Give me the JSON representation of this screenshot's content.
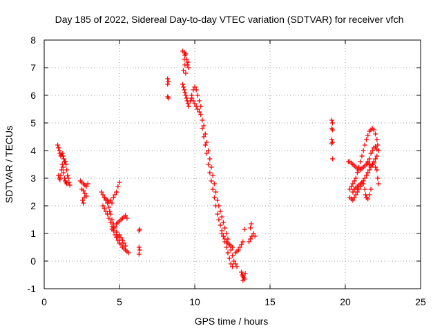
{
  "chart_data": {
    "type": "scatter",
    "title": "Day 185 of 2022, Sidereal Day-to-day VTEC variation (SDTVAR) for receiver vfch",
    "xlabel": "GPS time / hours",
    "ylabel": "SDTVAR / TECUs",
    "xlim": [
      0,
      25
    ],
    "ylim": [
      -1,
      8
    ],
    "xticks": [
      0,
      5,
      10,
      15,
      20,
      25
    ],
    "yticks": [
      -1,
      0,
      1,
      2,
      3,
      4,
      5,
      6,
      7,
      8
    ],
    "grid": true,
    "marker": "+",
    "color": "#ff0000",
    "series": [
      {
        "name": "SDTVAR",
        "points": [
          [
            0.9,
            4.2
          ],
          [
            0.95,
            4.1
          ],
          [
            1.0,
            4.0
          ],
          [
            1.05,
            3.9
          ],
          [
            1.1,
            3.8
          ],
          [
            1.15,
            3.85
          ],
          [
            1.2,
            3.9
          ],
          [
            1.25,
            3.8
          ],
          [
            1.3,
            3.7
          ],
          [
            1.35,
            3.6
          ],
          [
            1.4,
            3.6
          ],
          [
            1.45,
            3.5
          ],
          [
            1.5,
            3.3
          ],
          [
            1.55,
            3.1
          ],
          [
            1.6,
            3.0
          ],
          [
            1.65,
            2.85
          ],
          [
            1.7,
            2.75
          ],
          [
            0.95,
            3.1
          ],
          [
            1.0,
            3.0
          ],
          [
            1.05,
            2.95
          ],
          [
            1.1,
            3.1
          ],
          [
            1.15,
            3.3
          ],
          [
            1.2,
            3.5
          ],
          [
            1.25,
            3.4
          ],
          [
            1.3,
            3.2
          ],
          [
            1.35,
            3.0
          ],
          [
            1.4,
            2.9
          ],
          [
            1.45,
            2.85
          ],
          [
            1.5,
            2.8
          ],
          [
            2.4,
            2.9
          ],
          [
            2.5,
            2.85
          ],
          [
            2.6,
            2.8
          ],
          [
            2.7,
            2.75
          ],
          [
            2.8,
            2.7
          ],
          [
            2.9,
            2.8
          ],
          [
            2.5,
            2.6
          ],
          [
            2.6,
            2.55
          ],
          [
            2.7,
            2.45
          ],
          [
            2.8,
            2.35
          ],
          [
            2.55,
            2.2
          ],
          [
            2.6,
            2.1
          ],
          [
            2.65,
            2.3
          ],
          [
            3.8,
            2.5
          ],
          [
            3.9,
            2.4
          ],
          [
            4.0,
            2.3
          ],
          [
            4.1,
            2.2
          ],
          [
            4.2,
            2.1
          ],
          [
            4.3,
            1.95
          ],
          [
            4.35,
            1.8
          ],
          [
            4.4,
            1.7
          ],
          [
            4.5,
            1.5
          ],
          [
            4.6,
            1.35
          ],
          [
            4.7,
            1.2
          ],
          [
            4.8,
            1.05
          ],
          [
            4.9,
            0.9
          ],
          [
            5.0,
            0.75
          ],
          [
            5.1,
            0.6
          ],
          [
            5.2,
            0.5
          ],
          [
            5.3,
            0.45
          ],
          [
            5.4,
            0.4
          ],
          [
            5.5,
            0.35
          ],
          [
            5.6,
            0.3
          ],
          [
            3.9,
            2.0
          ],
          [
            4.0,
            1.9
          ],
          [
            4.1,
            1.8
          ],
          [
            4.2,
            1.7
          ],
          [
            4.3,
            1.55
          ],
          [
            4.4,
            1.4
          ],
          [
            4.5,
            1.25
          ],
          [
            4.6,
            1.1
          ],
          [
            4.7,
            0.95
          ],
          [
            4.8,
            0.85
          ],
          [
            4.9,
            0.75
          ],
          [
            5.0,
            0.65
          ],
          [
            4.0,
            2.3
          ],
          [
            4.1,
            2.25
          ],
          [
            4.2,
            2.2
          ],
          [
            4.3,
            2.15
          ],
          [
            4.4,
            2.2
          ],
          [
            4.5,
            2.1
          ],
          [
            4.6,
            2.3
          ],
          [
            4.7,
            2.4
          ],
          [
            4.8,
            2.5
          ],
          [
            4.9,
            2.7
          ],
          [
            5.0,
            2.85
          ],
          [
            4.5,
            1.15
          ],
          [
            4.6,
            1.2
          ],
          [
            4.7,
            1.25
          ],
          [
            4.8,
            1.35
          ],
          [
            4.9,
            1.4
          ],
          [
            5.0,
            1.45
          ],
          [
            5.1,
            1.5
          ],
          [
            5.2,
            1.55
          ],
          [
            5.3,
            1.6
          ],
          [
            5.4,
            1.65
          ],
          [
            5.5,
            1.55
          ],
          [
            5.0,
            0.95
          ],
          [
            5.1,
            0.85
          ],
          [
            5.2,
            0.75
          ],
          [
            5.3,
            0.65
          ],
          [
            5.4,
            0.55
          ],
          [
            6.3,
            1.1
          ],
          [
            6.35,
            1.15
          ],
          [
            6.3,
            0.5
          ],
          [
            6.35,
            0.4
          ],
          [
            6.3,
            0.25
          ],
          [
            8.2,
            6.6
          ],
          [
            8.25,
            6.5
          ],
          [
            8.2,
            6.4
          ],
          [
            8.2,
            5.95
          ],
          [
            8.25,
            5.9
          ],
          [
            9.2,
            7.6
          ],
          [
            9.3,
            7.55
          ],
          [
            9.35,
            7.45
          ],
          [
            9.4,
            7.5
          ],
          [
            9.45,
            7.3
          ],
          [
            9.5,
            7.1
          ],
          [
            9.55,
            7.2
          ],
          [
            9.6,
            7.0
          ],
          [
            9.3,
            7.3
          ],
          [
            9.35,
            7.1
          ],
          [
            9.25,
            6.9
          ],
          [
            9.4,
            6.8
          ],
          [
            9.2,
            6.4
          ],
          [
            9.25,
            6.3
          ],
          [
            9.3,
            6.2
          ],
          [
            9.35,
            6.1
          ],
          [
            9.4,
            6.0
          ],
          [
            9.45,
            5.9
          ],
          [
            9.5,
            5.8
          ],
          [
            9.55,
            5.7
          ],
          [
            9.6,
            5.6
          ],
          [
            9.7,
            5.8
          ],
          [
            9.8,
            6.0
          ],
          [
            9.9,
            6.2
          ],
          [
            10.0,
            6.3
          ],
          [
            10.1,
            6.2
          ],
          [
            10.2,
            6.0
          ],
          [
            10.3,
            5.8
          ],
          [
            10.4,
            5.6
          ],
          [
            9.8,
            5.9
          ],
          [
            9.9,
            5.8
          ],
          [
            10.0,
            5.7
          ],
          [
            10.1,
            5.6
          ],
          [
            10.2,
            5.5
          ],
          [
            10.3,
            5.4
          ],
          [
            10.4,
            5.3
          ],
          [
            10.5,
            5.1
          ],
          [
            10.6,
            4.9
          ],
          [
            10.7,
            4.6
          ],
          [
            10.8,
            4.3
          ],
          [
            10.9,
            4.0
          ],
          [
            11.0,
            3.7
          ],
          [
            11.1,
            3.4
          ],
          [
            11.2,
            3.1
          ],
          [
            11.3,
            2.8
          ],
          [
            11.4,
            2.5
          ],
          [
            11.5,
            2.2
          ],
          [
            11.6,
            2.0
          ],
          [
            11.7,
            1.8
          ],
          [
            11.8,
            1.6
          ],
          [
            11.9,
            1.4
          ],
          [
            12.0,
            1.2
          ],
          [
            12.1,
            1.0
          ],
          [
            12.2,
            0.8
          ],
          [
            12.3,
            0.6
          ],
          [
            12.4,
            0.4
          ],
          [
            12.5,
            0.2
          ],
          [
            12.6,
            0.0
          ],
          [
            12.7,
            -0.1
          ],
          [
            12.8,
            -0.2
          ],
          [
            10.5,
            4.8
          ],
          [
            10.6,
            4.5
          ],
          [
            10.7,
            4.2
          ],
          [
            10.8,
            3.9
          ],
          [
            10.9,
            3.5
          ],
          [
            11.0,
            3.2
          ],
          [
            11.1,
            2.9
          ],
          [
            11.2,
            2.6
          ],
          [
            11.3,
            2.3
          ],
          [
            11.4,
            2.0
          ],
          [
            11.5,
            1.7
          ],
          [
            11.6,
            1.5
          ],
          [
            11.7,
            1.3
          ],
          [
            11.8,
            1.1
          ],
          [
            11.9,
            0.9
          ],
          [
            12.0,
            0.7
          ],
          [
            12.1,
            0.5
          ],
          [
            12.2,
            0.3
          ],
          [
            12.3,
            0.1
          ],
          [
            12.4,
            -0.1
          ],
          [
            12.5,
            -0.2
          ],
          [
            11.8,
            1.0
          ],
          [
            11.9,
            0.9
          ],
          [
            12.0,
            0.8
          ],
          [
            12.1,
            0.7
          ],
          [
            12.2,
            0.65
          ],
          [
            12.3,
            0.6
          ],
          [
            12.4,
            0.55
          ],
          [
            12.5,
            0.5
          ],
          [
            12.7,
            0.3
          ],
          [
            12.8,
            0.35
          ],
          [
            12.9,
            0.4
          ],
          [
            13.0,
            0.5
          ],
          [
            13.1,
            0.6
          ],
          [
            13.2,
            0.7
          ],
          [
            13.3,
            1.15
          ],
          [
            13.1,
            -0.4
          ],
          [
            13.15,
            -0.5
          ],
          [
            13.2,
            -0.55
          ],
          [
            13.25,
            -0.6
          ],
          [
            13.3,
            -0.65
          ],
          [
            13.2,
            -0.7
          ],
          [
            13.35,
            -0.45
          ],
          [
            13.6,
            0.7
          ],
          [
            13.7,
            0.8
          ],
          [
            13.8,
            0.9
          ],
          [
            13.9,
            1.0
          ],
          [
            14.0,
            0.9
          ],
          [
            13.7,
            1.2
          ],
          [
            13.75,
            1.35
          ],
          [
            19.1,
            5.1
          ],
          [
            19.15,
            5.0
          ],
          [
            19.1,
            4.8
          ],
          [
            19.15,
            4.75
          ],
          [
            19.1,
            4.4
          ],
          [
            19.15,
            4.3
          ],
          [
            19.1,
            4.25
          ],
          [
            19.15,
            3.7
          ],
          [
            20.2,
            3.6
          ],
          [
            20.3,
            3.6
          ],
          [
            20.4,
            3.55
          ],
          [
            20.5,
            3.5
          ],
          [
            20.6,
            3.45
          ],
          [
            20.7,
            3.4
          ],
          [
            20.8,
            3.35
          ],
          [
            20.9,
            3.3
          ],
          [
            21.0,
            3.3
          ],
          [
            21.1,
            3.35
          ],
          [
            21.2,
            3.4
          ],
          [
            21.3,
            3.45
          ],
          [
            21.4,
            3.5
          ],
          [
            21.5,
            3.55
          ],
          [
            21.6,
            3.5
          ],
          [
            21.7,
            3.45
          ],
          [
            21.8,
            3.5
          ],
          [
            21.9,
            3.55
          ],
          [
            22.0,
            3.4
          ],
          [
            20.3,
            2.6
          ],
          [
            20.4,
            2.7
          ],
          [
            20.5,
            2.8
          ],
          [
            20.6,
            2.9
          ],
          [
            20.7,
            3.0
          ],
          [
            20.8,
            3.2
          ],
          [
            20.9,
            3.4
          ],
          [
            21.0,
            3.6
          ],
          [
            21.1,
            3.8
          ],
          [
            21.2,
            4.0
          ],
          [
            21.3,
            4.2
          ],
          [
            21.4,
            4.4
          ],
          [
            21.5,
            4.55
          ],
          [
            21.6,
            4.7
          ],
          [
            21.7,
            4.75
          ],
          [
            21.8,
            4.8
          ],
          [
            21.9,
            4.75
          ],
          [
            22.0,
            4.6
          ],
          [
            22.1,
            4.4
          ],
          [
            22.15,
            4.2
          ],
          [
            22.2,
            4.0
          ],
          [
            22.1,
            3.8
          ],
          [
            20.3,
            2.3
          ],
          [
            20.4,
            2.25
          ],
          [
            20.5,
            2.2
          ],
          [
            20.6,
            2.3
          ],
          [
            20.7,
            2.4
          ],
          [
            20.8,
            2.5
          ],
          [
            20.9,
            2.6
          ],
          [
            21.0,
            2.7
          ],
          [
            21.1,
            2.8
          ],
          [
            21.2,
            2.9
          ],
          [
            21.3,
            3.0
          ],
          [
            21.4,
            3.1
          ],
          [
            21.5,
            3.2
          ],
          [
            21.6,
            3.3
          ],
          [
            21.7,
            3.4
          ],
          [
            21.8,
            3.5
          ],
          [
            21.9,
            3.6
          ],
          [
            22.0,
            3.7
          ],
          [
            22.1,
            3.3
          ],
          [
            22.15,
            3.0
          ],
          [
            22.2,
            2.8
          ],
          [
            20.5,
            2.5
          ],
          [
            20.6,
            2.6
          ],
          [
            20.7,
            2.65
          ],
          [
            20.8,
            2.7
          ],
          [
            20.9,
            2.75
          ],
          [
            21.0,
            2.8
          ],
          [
            21.1,
            2.85
          ],
          [
            21.2,
            2.8
          ],
          [
            21.3,
            2.6
          ],
          [
            21.35,
            2.4
          ],
          [
            21.4,
            2.3
          ],
          [
            21.5,
            2.25
          ],
          [
            21.6,
            2.4
          ],
          [
            21.7,
            2.6
          ],
          [
            21.8,
            4.0
          ],
          [
            21.9,
            4.1
          ],
          [
            22.0,
            4.15
          ],
          [
            22.1,
            4.05
          ],
          [
            21.7,
            3.9
          ],
          [
            21.6,
            3.7
          ],
          [
            21.5,
            3.6
          ]
        ]
      }
    ]
  }
}
